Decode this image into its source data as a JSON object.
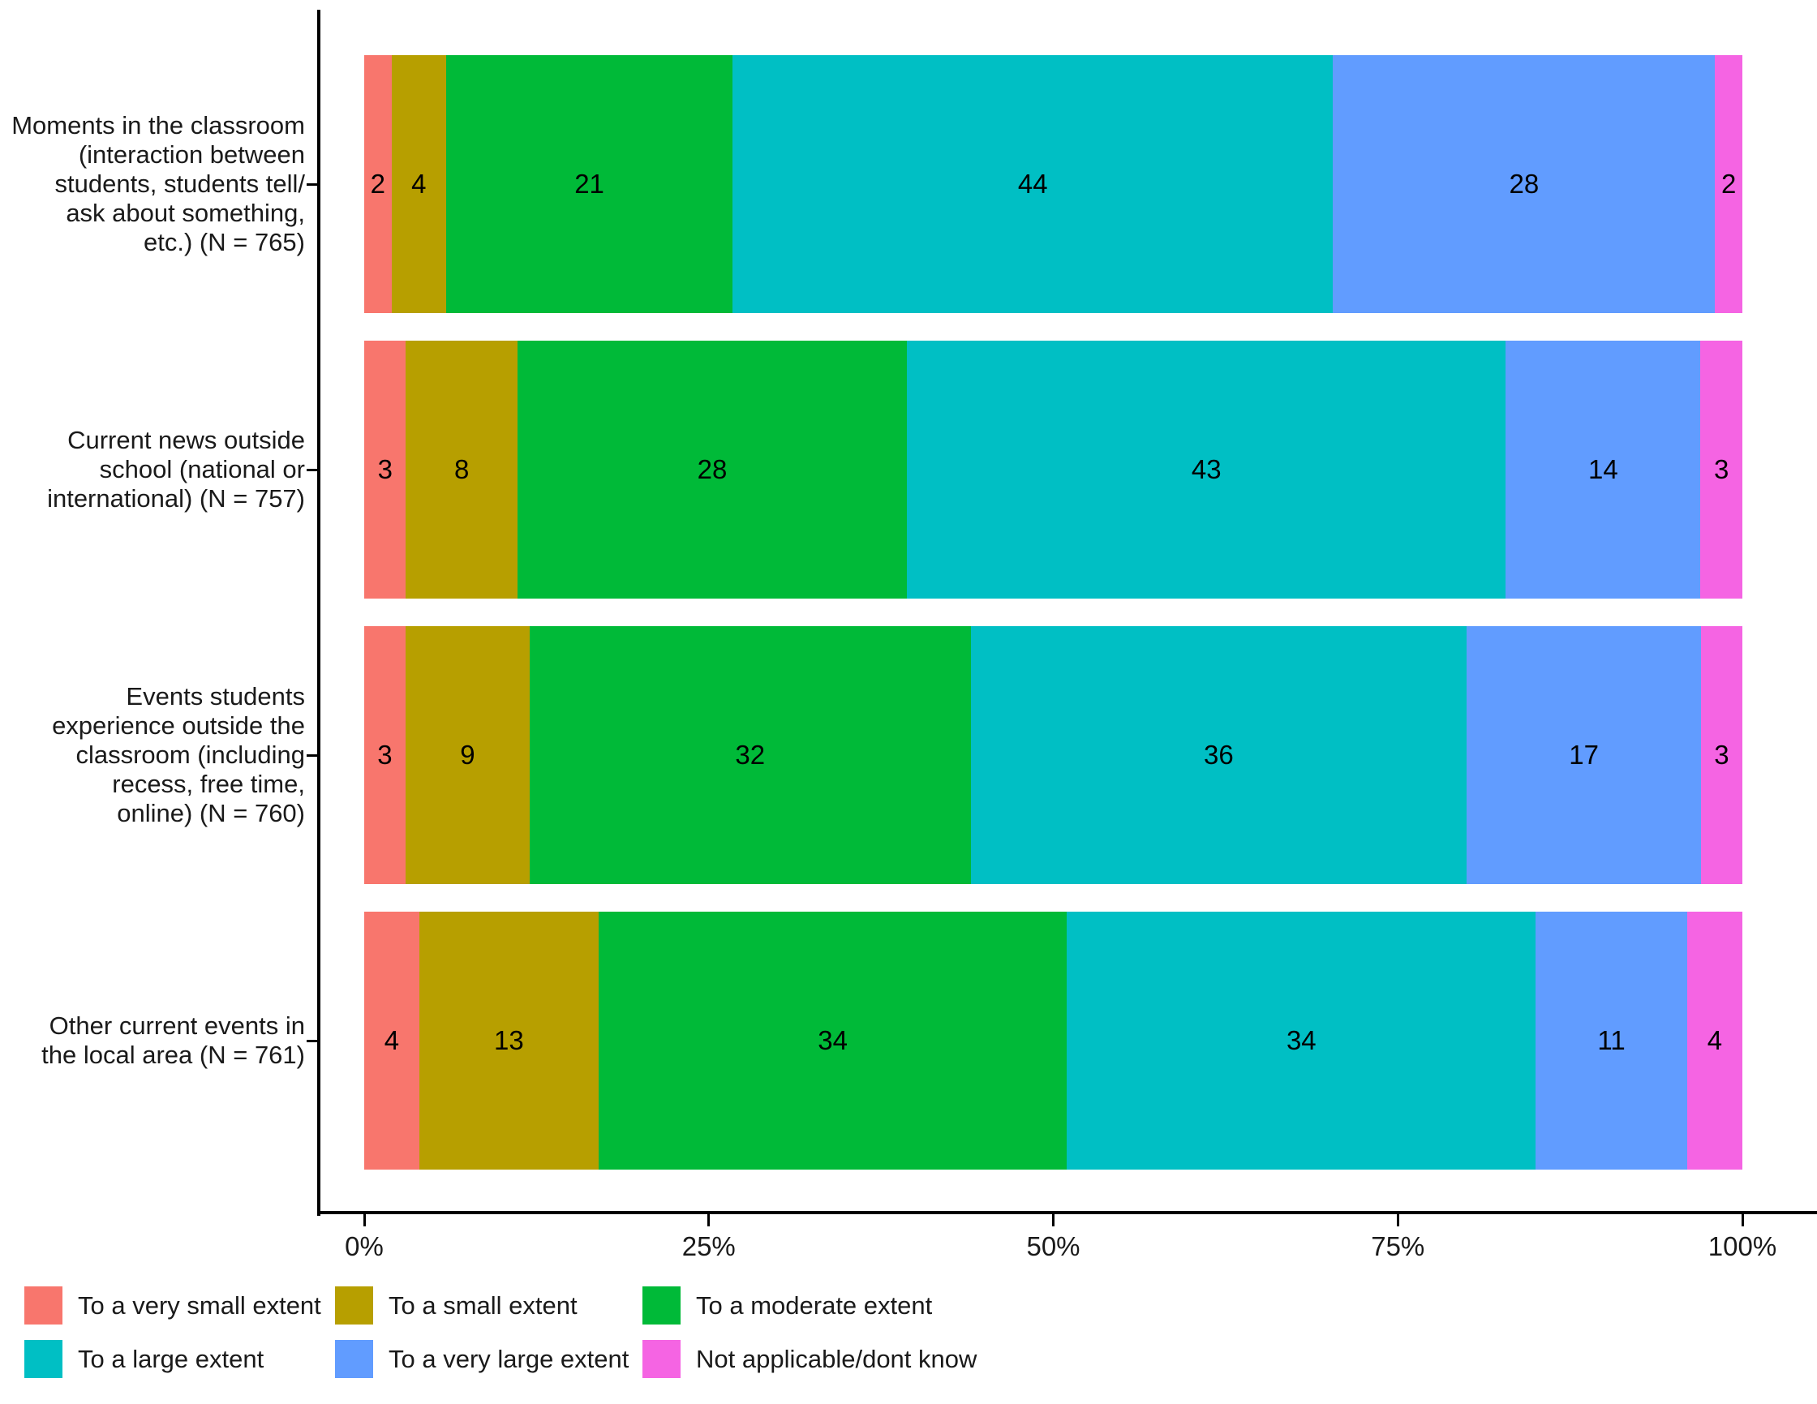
{
  "chart_data": {
    "type": "bar",
    "orientation": "horizontal",
    "stacked": "percent",
    "title": "",
    "xlabel": "",
    "ylabel": "",
    "grid": false,
    "legend_position": "bottom",
    "x_axis": {
      "ticks": [
        {
          "label": "0%",
          "value": 0
        },
        {
          "label": "25%",
          "value": 25
        },
        {
          "label": "50%",
          "value": 50
        },
        {
          "label": "75%",
          "value": 75
        },
        {
          "label": "100%",
          "value": 100
        }
      ],
      "range": [
        0,
        100
      ]
    },
    "categories": [
      {
        "label": "Moments in the classroom (interaction between students, students tell/ ask about something, etc.) (N = 765)",
        "lines": [
          "Moments in the classroom",
          "(interaction between",
          "students, students tell/",
          "ask about something,",
          "etc.) (N = 765)"
        ]
      },
      {
        "label": "Current news outside school (national or international) (N = 757)",
        "lines": [
          "Current news outside",
          "school (national or",
          "international) (N = 757)"
        ]
      },
      {
        "label": "Events students experience outside the classroom (including recess, free time, online) (N = 760)",
        "lines": [
          "Events students",
          "experience outside the",
          "classroom (including",
          "recess, free time,",
          "online) (N = 760)"
        ]
      },
      {
        "label": "Other current events in the local area (N = 761)",
        "lines": [
          "Other current events in",
          "the local area (N = 761)"
        ]
      }
    ],
    "series": [
      {
        "name": "To a very small extent",
        "color": "#F8766D",
        "values": [
          2,
          3,
          3,
          4
        ]
      },
      {
        "name": "To a small extent",
        "color": "#B79F00",
        "values": [
          4,
          8,
          9,
          13
        ]
      },
      {
        "name": "To a moderate extent",
        "color": "#00BA38",
        "values": [
          21,
          28,
          32,
          34
        ]
      },
      {
        "name": "To a large extent",
        "color": "#00BFC4",
        "values": [
          44,
          43,
          36,
          34
        ]
      },
      {
        "name": "To a very large extent",
        "color": "#619CFF",
        "values": [
          28,
          14,
          17,
          11
        ]
      },
      {
        "name": "Not applicable/dont know",
        "color": "#F564E3",
        "values": [
          2,
          3,
          3,
          4
        ]
      }
    ]
  }
}
